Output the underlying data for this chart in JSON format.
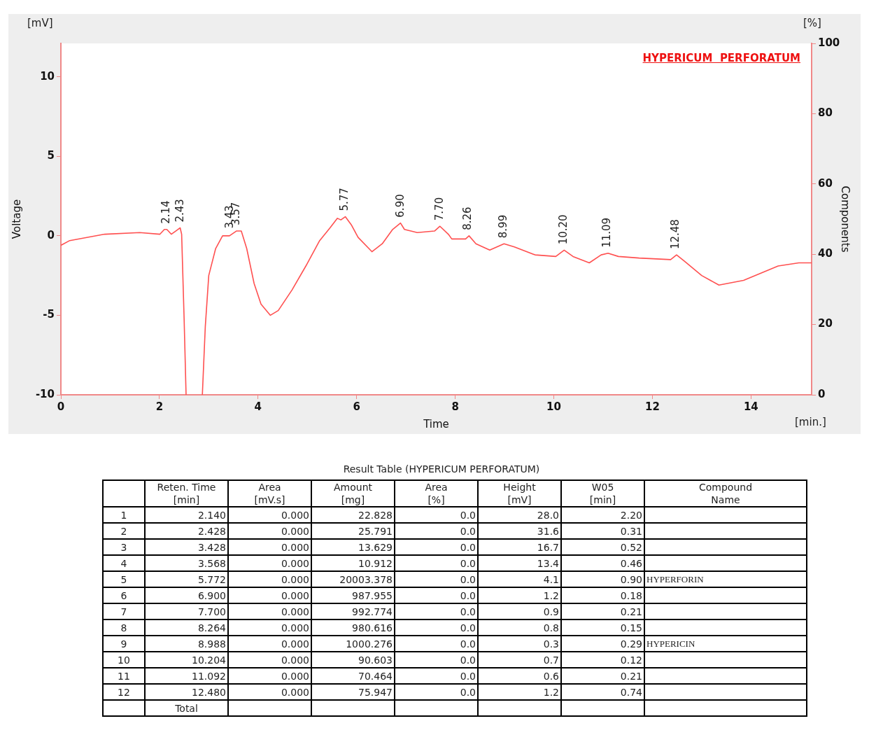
{
  "chart_data": {
    "type": "line",
    "title": "HYPERICUM  PERFORATUM",
    "xlabel": "Time",
    "ylabel": "Voltage",
    "y2label": "Components",
    "x": [
      0,
      0.18,
      0.89,
      1.6,
      2.01,
      2.1,
      2.15,
      2.24,
      2.33,
      2.42,
      2.45,
      2.5,
      2.54,
      2.7,
      2.87,
      2.93,
      3.0,
      3.14,
      3.28,
      3.42,
      3.56,
      3.66,
      3.77,
      3.92,
      4.06,
      4.25,
      4.41,
      4.69,
      4.97,
      5.25,
      5.46,
      5.61,
      5.68,
      5.77,
      5.89,
      6.03,
      6.31,
      6.52,
      6.73,
      6.89,
      6.97,
      7.23,
      7.58,
      7.69,
      7.86,
      7.93,
      8.21,
      8.28,
      8.42,
      8.7,
      8.99,
      9.2,
      9.62,
      10.04,
      10.21,
      10.39,
      10.72,
      10.96,
      11.1,
      11.31,
      11.73,
      12.37,
      12.49,
      12.65,
      13.0,
      13.35,
      13.85,
      14.55,
      14.97,
      15.23
    ],
    "series": [
      {
        "color": "#ff5050",
        "values": [
          -0.6,
          -0.3,
          0.1,
          0.2,
          0.1,
          0.4,
          0.4,
          0.1,
          0.3,
          0.5,
          0.1,
          -5.2,
          -10,
          null,
          -10,
          -5.7,
          -2.5,
          -0.8,
          0,
          0,
          0.3,
          0.3,
          -0.8,
          -3,
          -4.3,
          -5,
          -4.7,
          -3.4,
          -1.9,
          -0.3,
          0.5,
          1.1,
          1,
          1.2,
          0.7,
          -0.1,
          -1,
          -0.5,
          0.4,
          0.8,
          0.4,
          0.2,
          0.3,
          0.6,
          0.1,
          -0.2,
          -0.2,
          0,
          -0.5,
          -0.9,
          -0.5,
          -0.7,
          -1.2,
          -1.3,
          -0.9,
          -1.3,
          -1.7,
          -1.2,
          -1.1,
          -1.3,
          -1.4,
          -1.5,
          -1.2,
          -1.6,
          -2.5,
          -3.1,
          -2.8,
          -1.9,
          -1.7,
          -1.7
        ]
      }
    ],
    "xlim": [
      0,
      15.23
    ],
    "xticks": [
      0,
      2,
      4,
      6,
      8,
      10,
      12,
      14
    ],
    "ylim": [
      -10,
      12.1
    ],
    "yticks": [
      -10,
      -5,
      0,
      5,
      10
    ],
    "y2lim": [
      0,
      100
    ],
    "y2ticks": [
      0,
      20,
      40,
      60,
      80,
      100
    ],
    "grid": false,
    "legend": false,
    "annotations": [
      {
        "text": "2.14",
        "x": 2.14,
        "y": 0.4
      },
      {
        "text": "2.43",
        "x": 2.43,
        "y": 0.5
      },
      {
        "text": "3.43",
        "x": 3.43,
        "y": 0.1
      },
      {
        "text": "3.57",
        "x": 3.57,
        "y": 0.3
      },
      {
        "text": "5.77",
        "x": 5.77,
        "y": 1.2
      },
      {
        "text": "6.90",
        "x": 6.9,
        "y": 0.8
      },
      {
        "text": "7.70",
        "x": 7.7,
        "y": 0.6
      },
      {
        "text": "8.26",
        "x": 8.26,
        "y": 0
      },
      {
        "text": "8.99",
        "x": 8.99,
        "y": -0.5
      },
      {
        "text": "10.20",
        "x": 10.2,
        "y": -0.9
      },
      {
        "text": "11.09",
        "x": 11.09,
        "y": -1.1
      },
      {
        "text": "12.48",
        "x": 12.48,
        "y": -1.2
      },
      "[mV]",
      "[%]",
      "[min.]",
      "Result Table (HYPERICUM PERFORATUM)",
      "\tReten. Time\n[min]\tArea\n[mV.s]\tAmount\n[mg]\tArea\n[%]\tHeight\n[mV]\tW05\n[min]\tCompound\nName",
      "1\t2.140\t0.000\t22.828\t0.0\t28.0\t2.20",
      "2\t2.428\t0.000\t25.791\t0.0\t31.6\t0.31",
      "3\t3.428\t0.000\t13.629\t0.0\t16.7\t0.52",
      "4\t3.568\t0.000\t10.912\t0.0\t13.4\t0.46",
      "5\t5.772\t0.000\t20003.378\t0.0\t4.1\t0.90\tHYPERFORIN",
      "6\t6.900\t0.000\t987.955\t0.0\t1.2\t0.18",
      "7\t7.700\t0.000\t992.774\t0.0\t0.9\t0.21",
      "8\t8.264\t0.000\t980.616\t0.0\t0.8\t0.15",
      "9\t8.988\t0.000\t1000.276\t0.0\t0.3\t0.29\tHYPERICIN",
      "10\t10.204\t0.000\t90.603\t0.0\t0.7\t0.12",
      "11\t11.092\t0.000\t70.464\t0.0\t0.6\t0.21",
      "12\t12.480\t0.000\t75.947\t0.0\t1.2\t0.74",
      "\tTotal"
    ]
  }
}
